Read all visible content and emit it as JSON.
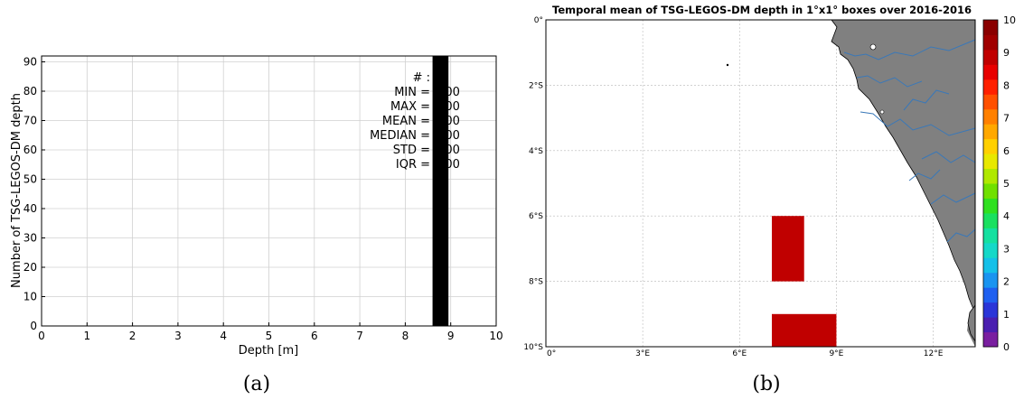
{
  "chart_data": [
    {
      "type": "bar",
      "xlabel": "Depth [m]",
      "ylabel": "Number of TSG-LEGOS-DM depth",
      "xlim": [
        0,
        10
      ],
      "ylim": [
        0,
        92
      ],
      "xticks": [
        0,
        1,
        2,
        3,
        4,
        5,
        6,
        7,
        8,
        9,
        10
      ],
      "yticks": [
        0,
        10,
        20,
        30,
        40,
        50,
        60,
        70,
        80,
        90
      ],
      "grid": true,
      "bars": [
        {
          "x0": 8.6,
          "x1": 8.95,
          "value": 92
        }
      ],
      "stats": [
        {
          "label": "# :",
          "value": "92"
        },
        {
          "label": "MIN =",
          "value": "9.00"
        },
        {
          "label": "MAX =",
          "value": "9.00"
        },
        {
          "label": "MEAN =",
          "value": "9.00"
        },
        {
          "label": "MEDIAN =",
          "value": "9.00"
        },
        {
          "label": "STD =",
          "value": "0.00"
        },
        {
          "label": "IQR =",
          "value": "0.00"
        }
      ],
      "caption": "(a)"
    },
    {
      "type": "heatmap",
      "title": "Temporal mean of TSG-LEGOS-DM depth in 1°x1° boxes over 2016-2016",
      "lon_range": [
        0,
        13.3
      ],
      "lat_range": [
        -10,
        0
      ],
      "lon_ticks": [
        "0°",
        "3°E",
        "6°E",
        "9°E",
        "12°E"
      ],
      "lon_tick_values": [
        0,
        3,
        6,
        9,
        12
      ],
      "lat_ticks": [
        "0°",
        "2°S",
        "4°S",
        "6°S",
        "8°S",
        "10°S"
      ],
      "lat_tick_values": [
        0,
        -2,
        -4,
        -6,
        -8,
        -10
      ],
      "grid": true,
      "cells": [
        {
          "lon0": 7,
          "lon1": 8,
          "lat0": -8,
          "lat1": -6,
          "value": 9
        },
        {
          "lon0": 7,
          "lon1": 9,
          "lat0": -10,
          "lat1": -9,
          "value": 9
        }
      ],
      "colorbar": {
        "min": 0,
        "max": 10,
        "ticks": [
          "0",
          "1",
          "2",
          "3",
          "4",
          "5",
          "6",
          "7",
          "8",
          "9",
          "10"
        ],
        "colors": [
          "#7a1fa0",
          "#4a1fb0",
          "#2a35d8",
          "#1f60f0",
          "#1a94f0",
          "#14c0e8",
          "#14d8c8",
          "#14e0a0",
          "#1ae060",
          "#30e020",
          "#70e000",
          "#b0e800",
          "#e8e800",
          "#ffd000",
          "#ffa800",
          "#ff8000",
          "#ff5000",
          "#ff2000",
          "#e80000",
          "#c00000",
          "#a00000",
          "#8a0000"
        ]
      },
      "caption": "(b)"
    }
  ]
}
